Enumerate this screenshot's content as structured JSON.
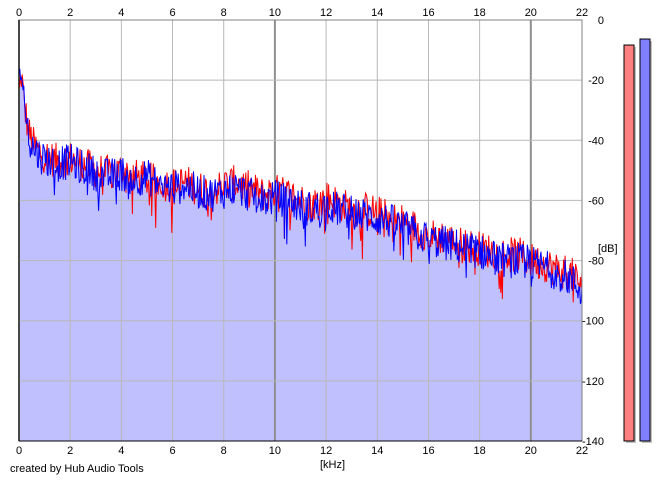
{
  "credit": "created by Hub Audio Tools",
  "chart_data": {
    "type": "line",
    "title": "",
    "xlabel": "[kHz]",
    "ylabel": "[dB]",
    "xlim": [
      0,
      22
    ],
    "ylim": [
      -140,
      0
    ],
    "x_ticks": [
      "0",
      "2",
      "4",
      "6",
      "8",
      "10",
      "12",
      "14",
      "16",
      "18",
      "20",
      "22"
    ],
    "y_ticks": [
      "0",
      "-20",
      "-40",
      "-60",
      "-80",
      "-100",
      "-120",
      "-140"
    ],
    "grid": true,
    "fill_color": "#c0c0ff",
    "series": [
      {
        "color": "#ff0000",
        "x": [
          0,
          0.1,
          0.2,
          0.4,
          0.6,
          0.8,
          1,
          1.5,
          2,
          2.5,
          3,
          3.5,
          4,
          4.5,
          5,
          5.5,
          6,
          6.5,
          7,
          7.5,
          8,
          8.5,
          9,
          9.5,
          10,
          10.5,
          11,
          11.5,
          12,
          12.5,
          13,
          13.5,
          14,
          14.5,
          15,
          15.5,
          16,
          16.5,
          17,
          17.5,
          18,
          18.5,
          19,
          19.5,
          20,
          20.5,
          21,
          21.5,
          22
        ],
        "values": [
          -25,
          -18,
          -28,
          -38,
          -42,
          -44,
          -45,
          -47,
          -46,
          -48,
          -50,
          -51,
          -50,
          -52,
          -53,
          -54,
          -55,
          -54,
          -56,
          -57,
          -55,
          -54,
          -56,
          -58,
          -57,
          -58,
          -60,
          -61,
          -59,
          -61,
          -63,
          -63,
          -64,
          -66,
          -67,
          -69,
          -72,
          -72,
          -74,
          -75,
          -76,
          -77,
          -78,
          -78,
          -80,
          -81,
          -83,
          -84,
          -88
        ]
      },
      {
        "color": "#0000ff",
        "x": [
          0,
          0.1,
          0.2,
          0.4,
          0.6,
          0.8,
          1,
          1.5,
          2,
          2.5,
          3,
          3.5,
          4,
          4.5,
          5,
          5.5,
          6,
          6.5,
          7,
          7.5,
          8,
          8.5,
          9,
          9.5,
          10,
          10.5,
          11,
          11.5,
          12,
          12.5,
          13,
          13.5,
          14,
          14.5,
          15,
          15.5,
          16,
          16.5,
          17,
          17.5,
          18,
          18.5,
          19,
          19.5,
          20,
          20.5,
          21,
          21.5,
          22
        ],
        "values": [
          -22,
          -15,
          -26,
          -40,
          -43,
          -45,
          -46,
          -48,
          -47,
          -49,
          -51,
          -52,
          -51,
          -53,
          -52,
          -55,
          -56,
          -55,
          -57,
          -58,
          -57,
          -56,
          -58,
          -60,
          -59,
          -60,
          -62,
          -63,
          -62,
          -63,
          -64,
          -65,
          -66,
          -67,
          -69,
          -71,
          -73,
          -74,
          -75,
          -76,
          -77,
          -79,
          -80,
          -80,
          -81,
          -82,
          -84,
          -86,
          -90
        ]
      }
    ],
    "level_meters": [
      {
        "color": "#ff8080",
        "level_db": -5
      },
      {
        "color": "#8080ff",
        "level_db": -3
      }
    ]
  }
}
